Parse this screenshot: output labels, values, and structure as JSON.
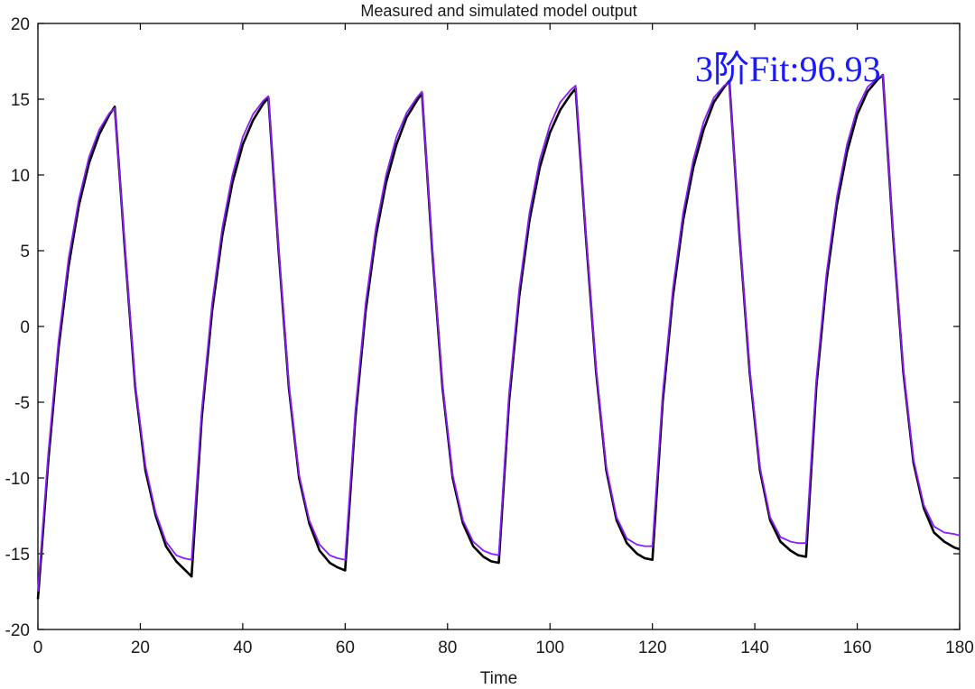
{
  "chart_data": {
    "type": "line",
    "title": "Measured and simulated model output",
    "xlabel": "Time",
    "ylabel": "",
    "xlim": [
      0,
      180
    ],
    "ylim": [
      -20,
      20
    ],
    "xticks": [
      0,
      20,
      40,
      60,
      80,
      100,
      120,
      140,
      160,
      180
    ],
    "yticks": [
      -20,
      -15,
      -10,
      -5,
      0,
      5,
      10,
      15,
      20
    ],
    "grid": false,
    "annotation": "3阶Fit:96.93",
    "series": [
      {
        "color": "#000000",
        "x": [
          0,
          2,
          4,
          6,
          8,
          10,
          12,
          14,
          15,
          17,
          19,
          21,
          23,
          25,
          27,
          28.5,
          30,
          32,
          34,
          36,
          38,
          40,
          42,
          44,
          45,
          47,
          49,
          51,
          53,
          55,
          57,
          58.5,
          60,
          62,
          64,
          66,
          68,
          70,
          72,
          74,
          75,
          77,
          79,
          81,
          83,
          85,
          87,
          88.5,
          90,
          92,
          94,
          96,
          98,
          100,
          102,
          104,
          105,
          107,
          109,
          111,
          113,
          115,
          117,
          118.5,
          120,
          122,
          124,
          126,
          128,
          130,
          132,
          134,
          135,
          137,
          139,
          141,
          143,
          145,
          147,
          148.5,
          150,
          152,
          154,
          156,
          158,
          160,
          162,
          164,
          165,
          167,
          169,
          171,
          173,
          175,
          177,
          179,
          180
        ],
        "y": [
          -18,
          -9,
          -1.5,
          4,
          8,
          10.8,
          12.7,
          14,
          14.5,
          5,
          -4,
          -9.5,
          -12.5,
          -14.5,
          -15.5,
          -16,
          -16.5,
          -6,
          1,
          6,
          9.5,
          12,
          13.6,
          14.7,
          15.1,
          5,
          -4,
          -10,
          -13,
          -14.8,
          -15.6,
          -15.9,
          -16.1,
          -6,
          1,
          6,
          9.5,
          12,
          13.8,
          14.9,
          15.4,
          5,
          -4,
          -10,
          -13,
          -14.5,
          -15.2,
          -15.5,
          -15.6,
          -5,
          2,
          7,
          10.5,
          12.8,
          14.3,
          15.3,
          15.7,
          6,
          -3,
          -9.5,
          -12.8,
          -14.3,
          -15,
          -15.3,
          -15.4,
          -5,
          2,
          7,
          10.5,
          13,
          14.8,
          15.8,
          16.2,
          6,
          -3,
          -9.5,
          -12.8,
          -14.2,
          -14.8,
          -15.1,
          -15.2,
          -4,
          3,
          8,
          11.5,
          14,
          15.5,
          16.3,
          16.6,
          6,
          -3,
          -9,
          -12,
          -13.6,
          -14.2,
          -14.6,
          -14.7
        ]
      },
      {
        "color": "#8c1aff",
        "x": [
          0,
          2,
          4,
          6,
          8,
          10,
          12,
          14,
          15,
          17,
          19,
          21,
          23,
          25,
          27,
          28.5,
          30,
          32,
          34,
          36,
          38,
          40,
          42,
          44,
          45,
          47,
          49,
          51,
          53,
          55,
          57,
          58.5,
          60,
          62,
          64,
          66,
          68,
          70,
          72,
          74,
          75,
          77,
          79,
          81,
          83,
          85,
          87,
          88.5,
          90,
          92,
          94,
          96,
          98,
          100,
          102,
          104,
          105,
          107,
          109,
          111,
          113,
          115,
          117,
          118.5,
          120,
          122,
          124,
          126,
          128,
          130,
          132,
          134,
          135,
          137,
          139,
          141,
          143,
          145,
          147,
          148.5,
          150,
          152,
          154,
          156,
          158,
          160,
          162,
          164,
          165,
          167,
          169,
          171,
          173,
          175,
          177,
          179,
          180
        ],
        "y": [
          -17.5,
          -8.5,
          -1,
          4.5,
          8.4,
          11.2,
          13,
          14.1,
          14.4,
          5.2,
          -3.8,
          -9.2,
          -12.3,
          -14.2,
          -15.1,
          -15.3,
          -15.4,
          -5.5,
          1.5,
          6.5,
          10,
          12.5,
          14,
          14.9,
          15.2,
          5.2,
          -3.8,
          -9.8,
          -12.8,
          -14.4,
          -15.1,
          -15.3,
          -15.4,
          -5.5,
          1.5,
          6.5,
          10,
          12.5,
          14.1,
          15.1,
          15.5,
          5.2,
          -3.8,
          -9.8,
          -12.8,
          -14.2,
          -14.8,
          -15,
          -15.1,
          -4.5,
          2.5,
          7.5,
          11,
          13.3,
          14.8,
          15.6,
          15.9,
          6.2,
          -2.8,
          -9.3,
          -12.6,
          -14,
          -14.4,
          -14.5,
          -14.5,
          -4.5,
          2.5,
          7.5,
          11,
          13.5,
          15.1,
          15.9,
          16.1,
          6.2,
          -2.8,
          -9.3,
          -12.6,
          -13.9,
          -14.2,
          -14.3,
          -14.3,
          -3.5,
          3.5,
          8.5,
          12,
          14.4,
          15.8,
          16.4,
          16.6,
          6.2,
          -2.8,
          -8.8,
          -11.8,
          -13.2,
          -13.6,
          -13.7,
          -13.8
        ]
      }
    ]
  }
}
